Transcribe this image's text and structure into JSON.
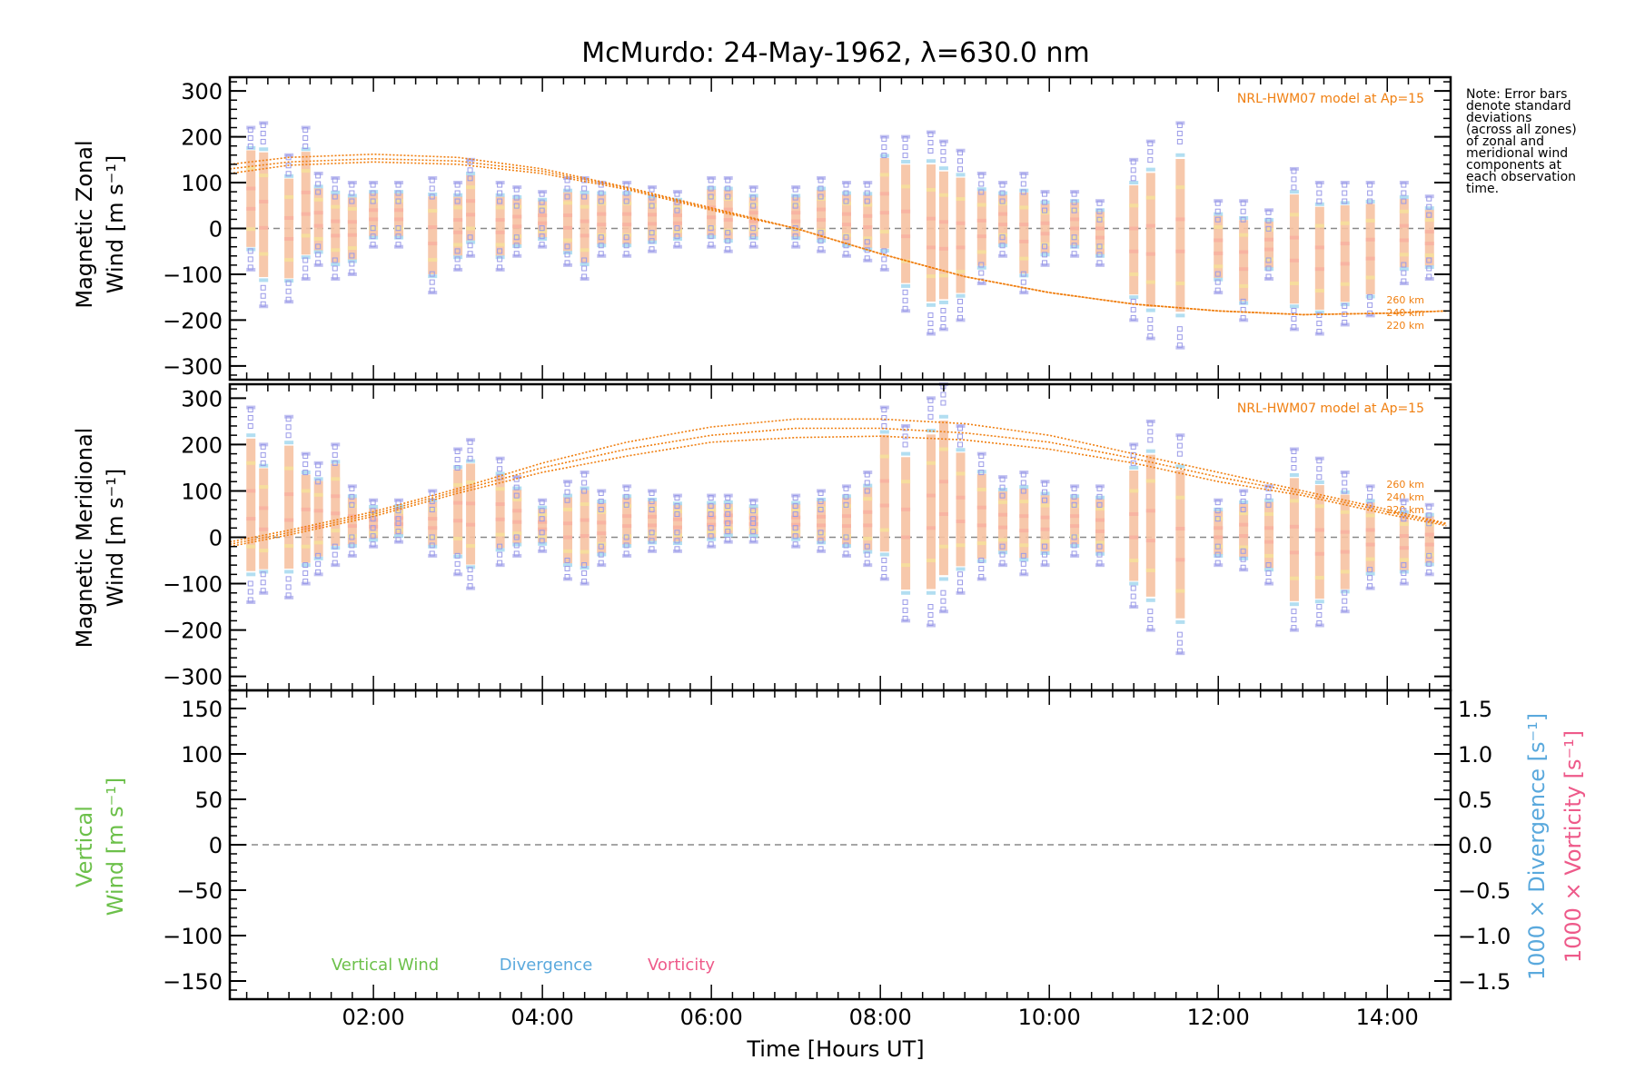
{
  "chart_data": [
    {
      "type": "scatter",
      "title": "McMurdo: 24-May-1962, λ=630.0 nm",
      "ylabel_line1": "Magnetic Zonal",
      "ylabel_line2": "Wind [m s⁻¹]",
      "ylim": [
        -330,
        330
      ],
      "yticks": [
        "300",
        "200",
        "100",
        "0",
        "−100",
        "−200",
        "−300"
      ],
      "model_label": "NRL-HWM07 model at Ap=15",
      "alt_labels": [
        "260 km",
        "240 km",
        "220 km"
      ],
      "zero_line": true,
      "model_curves": [
        {
          "name": "260 km",
          "x": [
            0.3,
            1.0,
            2.0,
            3.0,
            4.0,
            5.0,
            6.0,
            7.0,
            8.0,
            9.0,
            10.0,
            11.0,
            12.0,
            13.0,
            14.0,
            14.7
          ],
          "values": [
            140,
            155,
            162,
            155,
            130,
            90,
            45,
            0,
            -55,
            -105,
            -140,
            -165,
            -180,
            -188,
            -185,
            -180
          ]
        },
        {
          "name": "240 km",
          "x": [
            0.3,
            1.0,
            2.0,
            3.0,
            4.0,
            5.0,
            6.0,
            7.0,
            8.0,
            9.0,
            10.0,
            11.0,
            12.0,
            13.0,
            14.0,
            14.7
          ],
          "values": [
            130,
            145,
            152,
            147,
            125,
            88,
            43,
            0,
            -55,
            -105,
            -140,
            -165,
            -180,
            -188,
            -185,
            -180
          ]
        },
        {
          "name": "220 km",
          "x": [
            0.3,
            1.0,
            2.0,
            3.0,
            4.0,
            5.0,
            6.0,
            7.0,
            8.0,
            9.0,
            10.0,
            11.0,
            12.0,
            13.0,
            14.0,
            14.7
          ],
          "values": [
            120,
            138,
            145,
            140,
            120,
            85,
            40,
            0,
            -55,
            -105,
            -140,
            -165,
            -180,
            -188,
            -185,
            -180
          ]
        }
      ],
      "observation_columns": [
        {
          "x": 0.55,
          "min": -90,
          "max": 220
        },
        {
          "x": 0.7,
          "min": -170,
          "max": 230
        },
        {
          "x": 1.0,
          "min": -160,
          "max": 160
        },
        {
          "x": 1.2,
          "min": -110,
          "max": 220
        },
        {
          "x": 1.35,
          "min": -80,
          "max": 120
        },
        {
          "x": 1.55,
          "min": -110,
          "max": 110
        },
        {
          "x": 1.75,
          "min": -100,
          "max": 100
        },
        {
          "x": 2.0,
          "min": -40,
          "max": 100
        },
        {
          "x": 2.3,
          "min": -40,
          "max": 100
        },
        {
          "x": 2.7,
          "min": -140,
          "max": 110
        },
        {
          "x": 3.0,
          "min": -90,
          "max": 100
        },
        {
          "x": 3.15,
          "min": -60,
          "max": 150
        },
        {
          "x": 3.5,
          "min": -90,
          "max": 100
        },
        {
          "x": 3.7,
          "min": -60,
          "max": 90
        },
        {
          "x": 4.0,
          "min": -40,
          "max": 80
        },
        {
          "x": 4.3,
          "min": -80,
          "max": 110
        },
        {
          "x": 4.5,
          "min": -110,
          "max": 110
        },
        {
          "x": 4.7,
          "min": -60,
          "max": 100
        },
        {
          "x": 5.0,
          "min": -60,
          "max": 100
        },
        {
          "x": 5.3,
          "min": -50,
          "max": 90
        },
        {
          "x": 5.6,
          "min": -40,
          "max": 80
        },
        {
          "x": 6.0,
          "min": -40,
          "max": 110
        },
        {
          "x": 6.2,
          "min": -50,
          "max": 110
        },
        {
          "x": 6.5,
          "min": -40,
          "max": 90
        },
        {
          "x": 7.0,
          "min": -40,
          "max": 90
        },
        {
          "x": 7.3,
          "min": -50,
          "max": 110
        },
        {
          "x": 7.6,
          "min": -60,
          "max": 100
        },
        {
          "x": 7.85,
          "min": -70,
          "max": 100
        },
        {
          "x": 8.05,
          "min": -90,
          "max": 200
        },
        {
          "x": 8.3,
          "min": -180,
          "max": 200
        },
        {
          "x": 8.6,
          "min": -230,
          "max": 210
        },
        {
          "x": 8.75,
          "min": -220,
          "max": 190
        },
        {
          "x": 8.95,
          "min": -200,
          "max": 170
        },
        {
          "x": 9.2,
          "min": -120,
          "max": 120
        },
        {
          "x": 9.45,
          "min": -60,
          "max": 100
        },
        {
          "x": 9.7,
          "min": -140,
          "max": 120
        },
        {
          "x": 9.95,
          "min": -80,
          "max": 80
        },
        {
          "x": 10.3,
          "min": -60,
          "max": 80
        },
        {
          "x": 10.6,
          "min": -80,
          "max": 60
        },
        {
          "x": 11.0,
          "min": -200,
          "max": 150
        },
        {
          "x": 11.2,
          "min": -240,
          "max": 190
        },
        {
          "x": 11.55,
          "min": -260,
          "max": 230
        },
        {
          "x": 12.0,
          "min": -140,
          "max": 60
        },
        {
          "x": 12.3,
          "min": -200,
          "max": 60
        },
        {
          "x": 12.6,
          "min": -110,
          "max": 40
        },
        {
          "x": 12.9,
          "min": -220,
          "max": 130
        },
        {
          "x": 13.2,
          "min": -230,
          "max": 100
        },
        {
          "x": 13.5,
          "min": -210,
          "max": 100
        },
        {
          "x": 13.8,
          "min": -190,
          "max": 100
        },
        {
          "x": 14.2,
          "min": -120,
          "max": 100
        },
        {
          "x": 14.5,
          "min": -110,
          "max": 70
        }
      ]
    },
    {
      "type": "scatter",
      "ylabel_line1": "Magnetic Meridional",
      "ylabel_line2": "Wind [m s⁻¹]",
      "ylim": [
        -330,
        330
      ],
      "yticks": [
        "300",
        "200",
        "100",
        "0",
        "−100",
        "−200",
        "−300"
      ],
      "model_label": "NRL-HWM07 model at Ap=15",
      "alt_labels": [
        "260 km",
        "240 km",
        "220 km"
      ],
      "zero_line": true,
      "model_curves": [
        {
          "name": "260 km",
          "x": [
            0.3,
            1.0,
            2.0,
            3.0,
            4.0,
            5.0,
            6.0,
            7.0,
            8.0,
            9.0,
            10.0,
            11.0,
            12.0,
            13.0,
            14.0,
            14.7
          ],
          "values": [
            -10,
            15,
            55,
            105,
            160,
            205,
            238,
            255,
            255,
            245,
            220,
            180,
            140,
            100,
            60,
            30
          ]
        },
        {
          "name": "240 km",
          "x": [
            0.3,
            1.0,
            2.0,
            3.0,
            4.0,
            5.0,
            6.0,
            7.0,
            8.0,
            9.0,
            10.0,
            11.0,
            12.0,
            13.0,
            14.0,
            14.7
          ],
          "values": [
            -15,
            10,
            50,
            100,
            150,
            190,
            220,
            235,
            235,
            225,
            205,
            170,
            130,
            95,
            55,
            28
          ]
        },
        {
          "name": "220 km",
          "x": [
            0.3,
            1.0,
            2.0,
            3.0,
            4.0,
            5.0,
            6.0,
            7.0,
            8.0,
            9.0,
            10.0,
            11.0,
            12.0,
            13.0,
            14.0,
            14.7
          ],
          "values": [
            -20,
            5,
            45,
            95,
            140,
            175,
            205,
            215,
            218,
            210,
            190,
            160,
            120,
            90,
            50,
            25
          ]
        }
      ],
      "observation_columns": [
        {
          "x": 0.55,
          "min": -140,
          "max": 280
        },
        {
          "x": 0.7,
          "min": -120,
          "max": 200
        },
        {
          "x": 1.0,
          "min": -130,
          "max": 260
        },
        {
          "x": 1.2,
          "min": -100,
          "max": 180
        },
        {
          "x": 1.35,
          "min": -80,
          "max": 160
        },
        {
          "x": 1.55,
          "min": -60,
          "max": 200
        },
        {
          "x": 1.75,
          "min": -40,
          "max": 110
        },
        {
          "x": 2.0,
          "min": -20,
          "max": 80
        },
        {
          "x": 2.3,
          "min": -10,
          "max": 80
        },
        {
          "x": 2.7,
          "min": -40,
          "max": 100
        },
        {
          "x": 3.0,
          "min": -80,
          "max": 190
        },
        {
          "x": 3.15,
          "min": -110,
          "max": 210
        },
        {
          "x": 3.5,
          "min": -60,
          "max": 170
        },
        {
          "x": 3.7,
          "min": -40,
          "max": 130
        },
        {
          "x": 4.0,
          "min": -30,
          "max": 80
        },
        {
          "x": 4.3,
          "min": -90,
          "max": 120
        },
        {
          "x": 4.5,
          "min": -100,
          "max": 140
        },
        {
          "x": 4.7,
          "min": -60,
          "max": 100
        },
        {
          "x": 5.0,
          "min": -40,
          "max": 110
        },
        {
          "x": 5.3,
          "min": -30,
          "max": 100
        },
        {
          "x": 5.6,
          "min": -30,
          "max": 90
        },
        {
          "x": 6.0,
          "min": -20,
          "max": 90
        },
        {
          "x": 6.2,
          "min": -10,
          "max": 90
        },
        {
          "x": 6.5,
          "min": -10,
          "max": 80
        },
        {
          "x": 7.0,
          "min": -20,
          "max": 90
        },
        {
          "x": 7.3,
          "min": -30,
          "max": 100
        },
        {
          "x": 7.6,
          "min": -40,
          "max": 110
        },
        {
          "x": 7.85,
          "min": -60,
          "max": 140
        },
        {
          "x": 8.05,
          "min": -90,
          "max": 280
        },
        {
          "x": 8.3,
          "min": -180,
          "max": 240
        },
        {
          "x": 8.6,
          "min": -190,
          "max": 300
        },
        {
          "x": 8.75,
          "min": -160,
          "max": 330
        },
        {
          "x": 8.95,
          "min": -120,
          "max": 240
        },
        {
          "x": 9.2,
          "min": -90,
          "max": 180
        },
        {
          "x": 9.45,
          "min": -60,
          "max": 130
        },
        {
          "x": 9.7,
          "min": -80,
          "max": 140
        },
        {
          "x": 9.95,
          "min": -60,
          "max": 120
        },
        {
          "x": 10.3,
          "min": -40,
          "max": 110
        },
        {
          "x": 10.6,
          "min": -60,
          "max": 110
        },
        {
          "x": 11.0,
          "min": -150,
          "max": 200
        },
        {
          "x": 11.2,
          "min": -200,
          "max": 250
        },
        {
          "x": 11.55,
          "min": -250,
          "max": 220
        },
        {
          "x": 12.0,
          "min": -60,
          "max": 80
        },
        {
          "x": 12.3,
          "min": -70,
          "max": 100
        },
        {
          "x": 12.6,
          "min": -100,
          "max": 110
        },
        {
          "x": 12.9,
          "min": -200,
          "max": 190
        },
        {
          "x": 13.2,
          "min": -190,
          "max": 170
        },
        {
          "x": 13.5,
          "min": -160,
          "max": 140
        },
        {
          "x": 13.8,
          "min": -110,
          "max": 110
        },
        {
          "x": 14.2,
          "min": -100,
          "max": 80
        },
        {
          "x": 14.5,
          "min": -80,
          "max": 70
        }
      ]
    },
    {
      "type": "line",
      "ylabel_line1": "Vertical",
      "ylabel_line2": "Wind [m s⁻¹]",
      "ylim": [
        -170,
        170
      ],
      "yticks": [
        "150",
        "100",
        "50",
        "0",
        "−50",
        "−100",
        "−150"
      ],
      "y2lim": [
        -1.7,
        1.7
      ],
      "y2ticks": [
        "1.5",
        "1.0",
        "0.5",
        "0.0",
        "−0.5",
        "−1.0",
        "−1.5"
      ],
      "y2label_a": "1000 × Divergence [s⁻¹]",
      "y2label_b": "1000 × Vorticity [s⁻¹]",
      "zero_line": true,
      "legend": [
        "Vertical Wind",
        "Divergence",
        "Vorticity"
      ],
      "legend_colors": [
        "#6cc04a",
        "#5aa9dd",
        "#ee5a8a"
      ],
      "series": []
    }
  ],
  "xaxis": {
    "label": "Time [Hours UT]",
    "xlim": [
      0.3,
      14.75
    ],
    "ticks": [
      {
        "value": 2,
        "label": "02:00"
      },
      {
        "value": 4,
        "label": "04:00"
      },
      {
        "value": 6,
        "label": "06:00"
      },
      {
        "value": 8,
        "label": "08:00"
      },
      {
        "value": 10,
        "label": "10:00"
      },
      {
        "value": 12,
        "label": "12:00"
      },
      {
        "value": 14,
        "label": "14:00"
      }
    ]
  },
  "note": [
    "Note: Error bars",
    "denote standard",
    "deviations",
    "(across all zones)",
    "of zonal and",
    "meridional wind",
    "components at",
    "each observation",
    "time."
  ],
  "colors": {
    "model": "#f07f10",
    "obs_outer": "#9a9ae8",
    "zero": "#888888",
    "axis": "#000000"
  }
}
